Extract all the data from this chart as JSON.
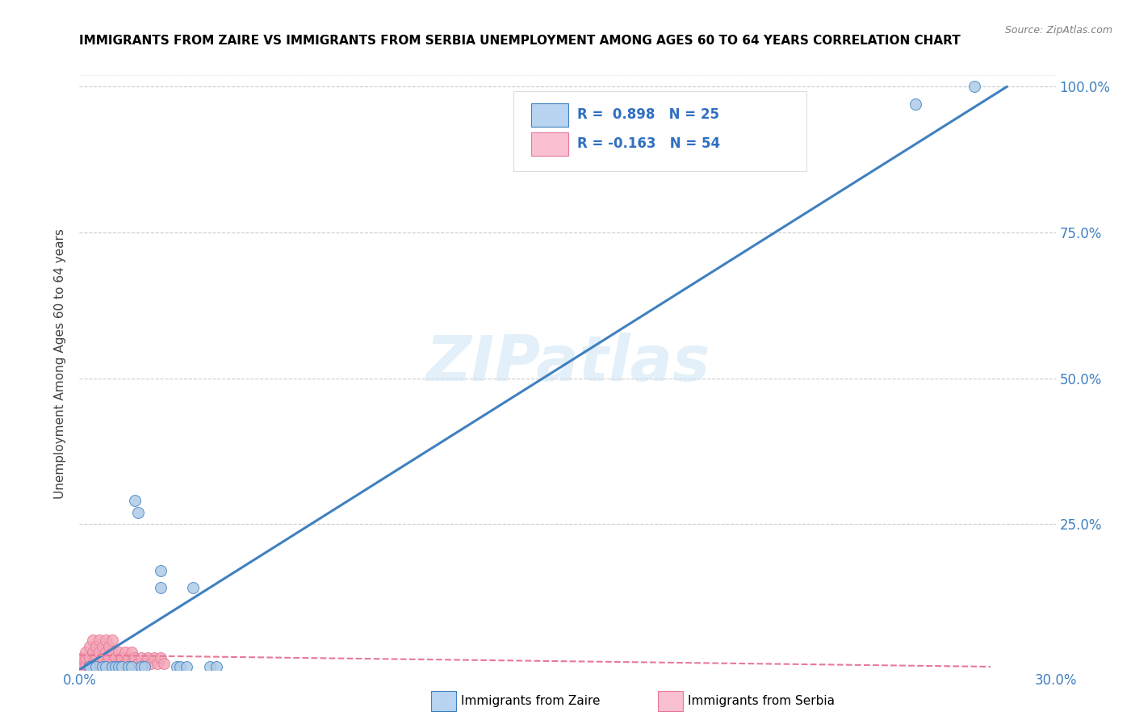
{
  "title": "IMMIGRANTS FROM ZAIRE VS IMMIGRANTS FROM SERBIA UNEMPLOYMENT AMONG AGES 60 TO 64 YEARS CORRELATION CHART",
  "source": "Source: ZipAtlas.com",
  "ylabel": "Unemployment Among Ages 60 to 64 years",
  "xlim": [
    0.0,
    0.3
  ],
  "ylim": [
    0.0,
    1.05
  ],
  "xticks": [
    0.0,
    0.05,
    0.1,
    0.15,
    0.2,
    0.25,
    0.3
  ],
  "xticklabels": [
    "0.0%",
    "",
    "",
    "",
    "",
    "",
    "30.0%"
  ],
  "yticks": [
    0.0,
    0.25,
    0.5,
    0.75,
    1.0
  ],
  "yticklabels": [
    "",
    "25.0%",
    "50.0%",
    "75.0%",
    "100.0%"
  ],
  "zaire_r": 0.898,
  "zaire_n": 25,
  "serbia_r": -0.163,
  "serbia_n": 54,
  "zaire_color": "#aecce8",
  "serbia_color": "#f4a8b8",
  "zaire_line_color": "#4080c0",
  "serbia_line_color": "#e87898",
  "zaire_scatter_x": [
    0.003,
    0.003,
    0.005,
    0.007,
    0.008,
    0.01,
    0.011,
    0.012,
    0.013,
    0.015,
    0.016,
    0.017,
    0.018,
    0.019,
    0.02,
    0.025,
    0.025,
    0.03,
    0.031,
    0.033,
    0.035,
    0.04,
    0.042,
    0.257,
    0.275
  ],
  "zaire_scatter_y": [
    0.005,
    0.005,
    0.005,
    0.005,
    0.005,
    0.005,
    0.005,
    0.005,
    0.005,
    0.005,
    0.005,
    0.29,
    0.27,
    0.005,
    0.005,
    0.14,
    0.17,
    0.005,
    0.005,
    0.005,
    0.14,
    0.005,
    0.005,
    0.97,
    1.0
  ],
  "serbia_scatter_x": [
    0.0,
    0.0,
    0.001,
    0.001,
    0.001,
    0.002,
    0.002,
    0.002,
    0.003,
    0.003,
    0.003,
    0.004,
    0.004,
    0.004,
    0.005,
    0.005,
    0.005,
    0.006,
    0.006,
    0.006,
    0.007,
    0.007,
    0.007,
    0.008,
    0.008,
    0.008,
    0.009,
    0.009,
    0.009,
    0.01,
    0.01,
    0.01,
    0.011,
    0.011,
    0.012,
    0.012,
    0.013,
    0.013,
    0.014,
    0.014,
    0.015,
    0.015,
    0.016,
    0.016,
    0.017,
    0.018,
    0.019,
    0.02,
    0.021,
    0.022,
    0.023,
    0.024,
    0.025,
    0.026
  ],
  "serbia_scatter_y": [
    0.0,
    0.01,
    0.0,
    0.01,
    0.02,
    0.01,
    0.02,
    0.03,
    0.01,
    0.02,
    0.04,
    0.01,
    0.03,
    0.05,
    0.01,
    0.02,
    0.04,
    0.01,
    0.03,
    0.05,
    0.01,
    0.02,
    0.04,
    0.01,
    0.03,
    0.05,
    0.01,
    0.02,
    0.04,
    0.01,
    0.03,
    0.05,
    0.01,
    0.02,
    0.01,
    0.03,
    0.01,
    0.02,
    0.01,
    0.03,
    0.01,
    0.02,
    0.01,
    0.03,
    0.02,
    0.01,
    0.02,
    0.01,
    0.02,
    0.01,
    0.02,
    0.01,
    0.02,
    0.01
  ],
  "zaire_trend_x": [
    0.0,
    0.285
  ],
  "zaire_trend_y": [
    0.0,
    1.0
  ],
  "serbia_trend_x": [
    0.0,
    0.28
  ],
  "serbia_trend_y": [
    0.025,
    0.005
  ],
  "watermark_text": "ZIPatlas",
  "legend_box_color_zaire": "#b8d4f0",
  "legend_box_color_serbia": "#f8c0d0",
  "legend_text_color_zaire": "#3070c0",
  "legend_text_color_serbia": "#d06080",
  "background_color": "#ffffff",
  "grid_color": "#cccccc",
  "title_color": "#000000",
  "source_color": "#808080",
  "ylabel_color": "#404040",
  "tick_color": "#4080c0"
}
